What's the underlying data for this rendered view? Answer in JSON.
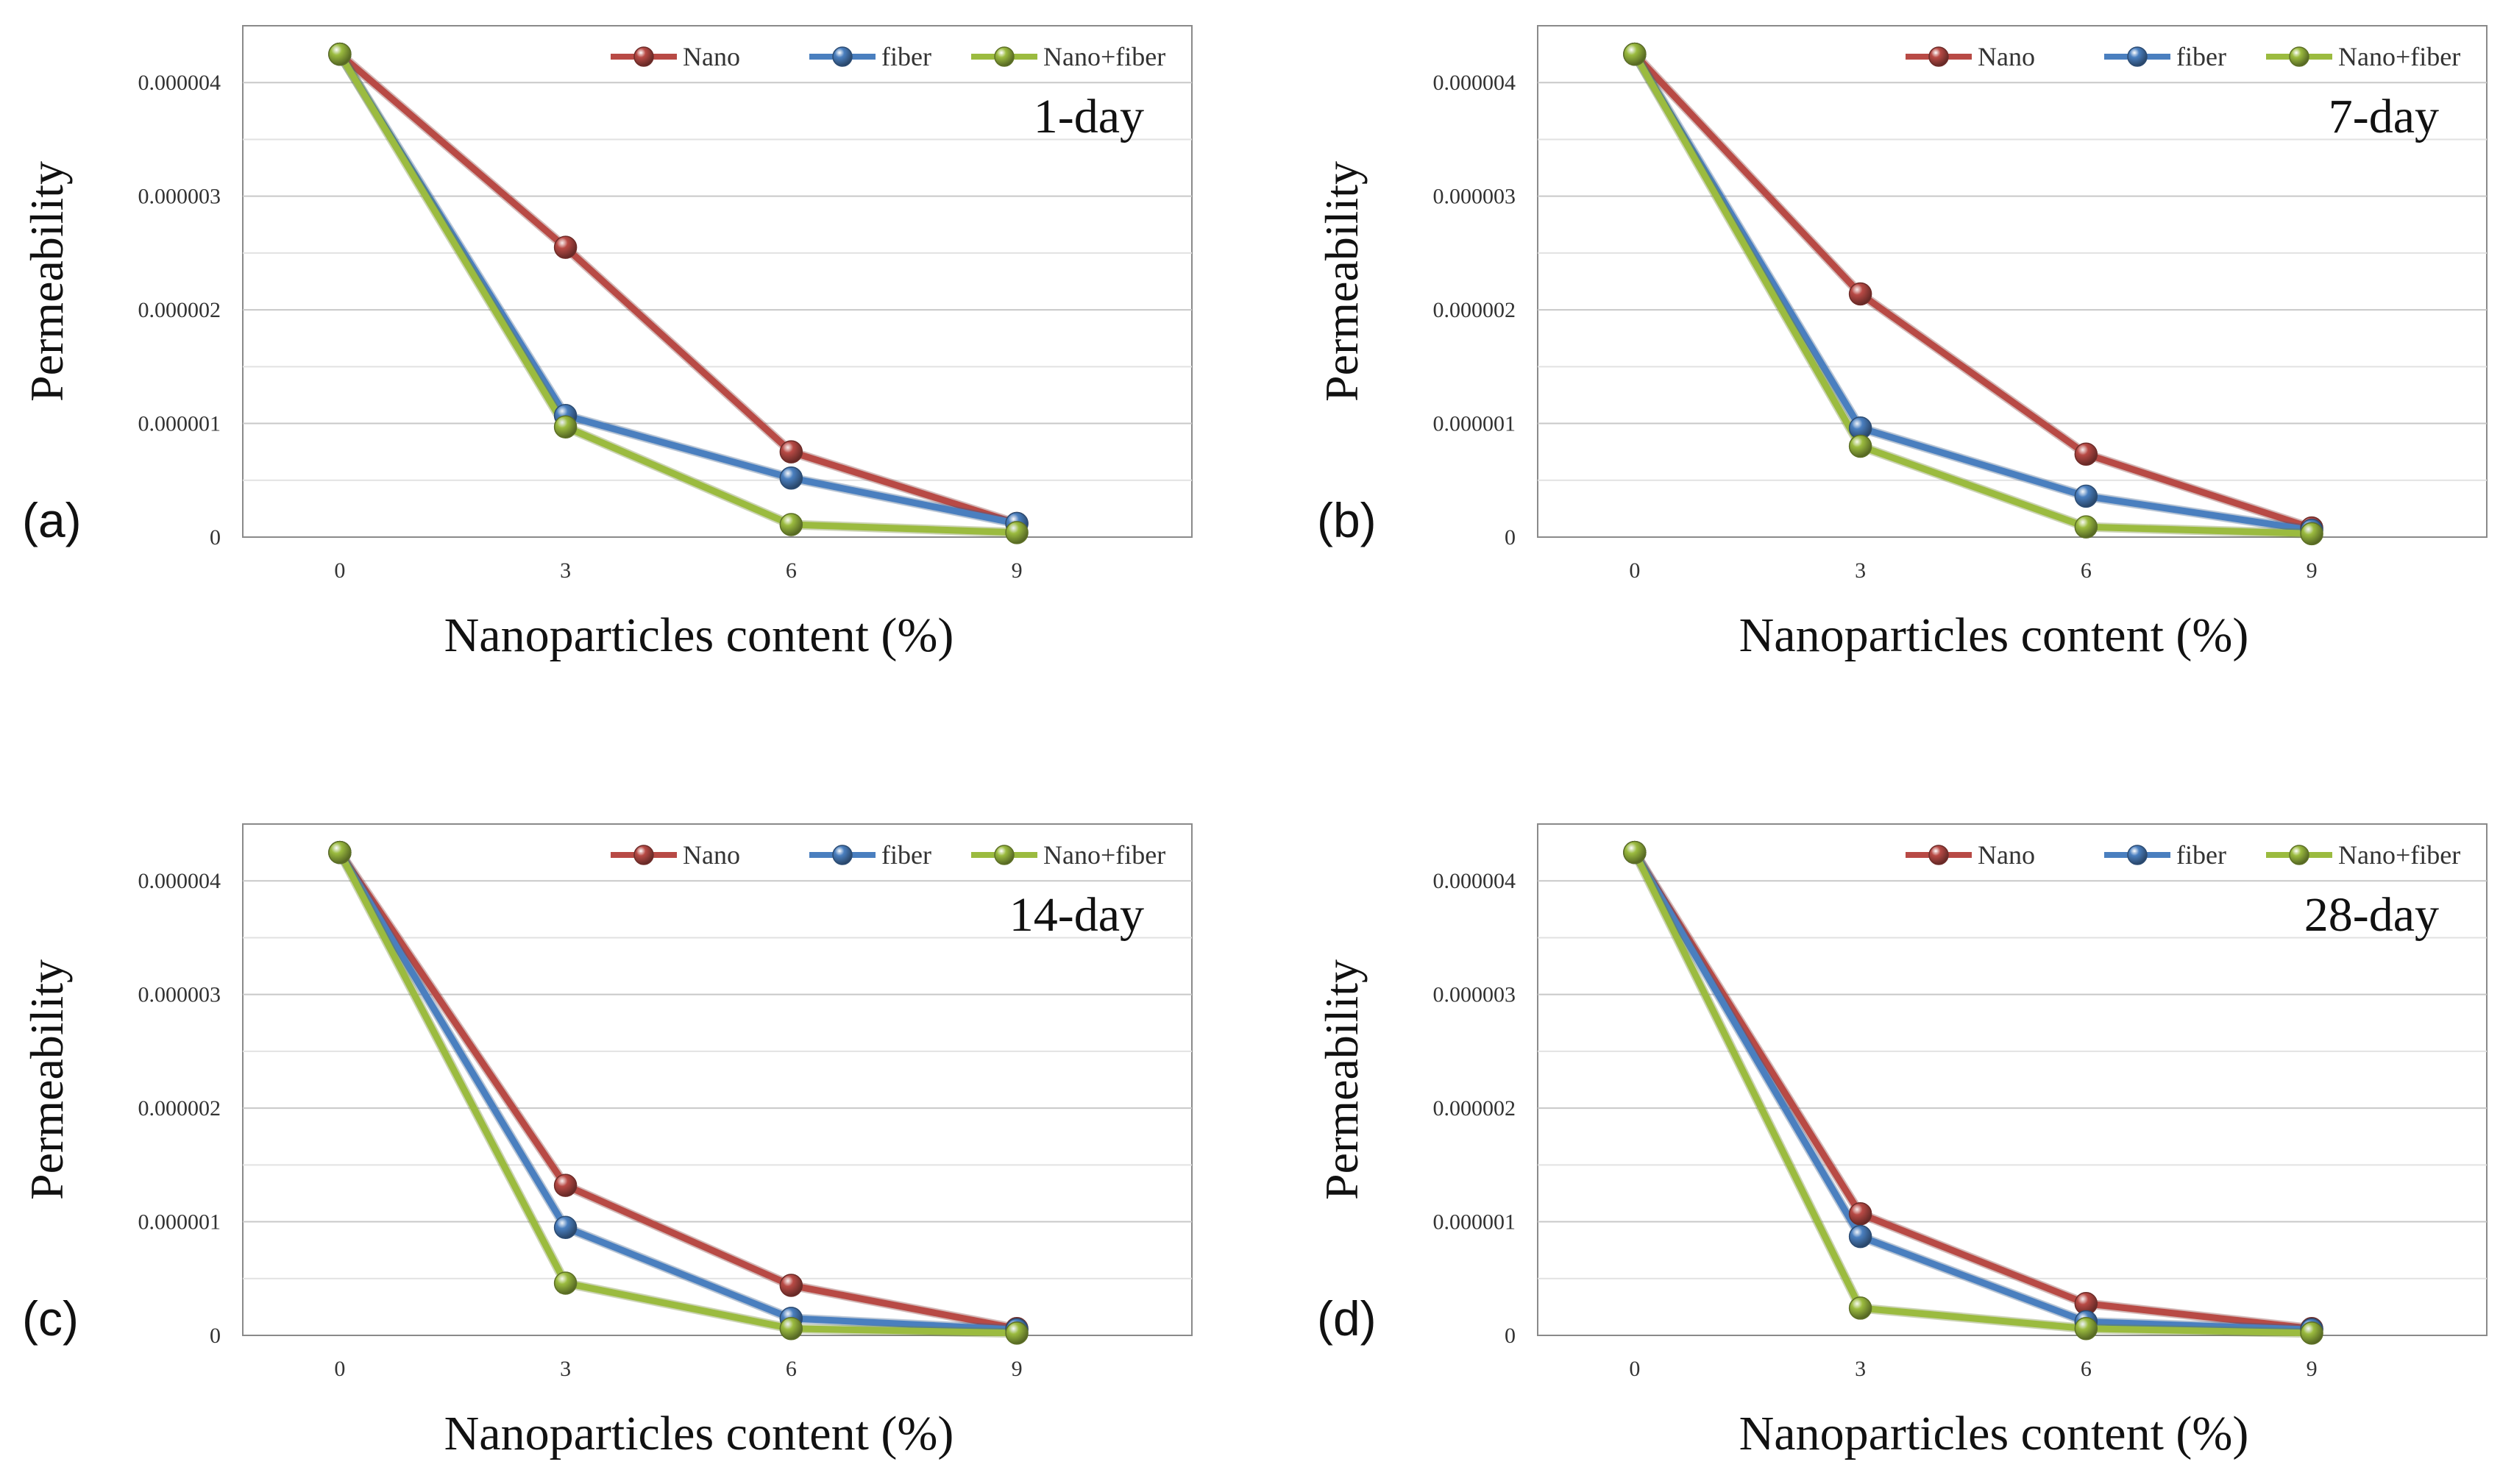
{
  "figure": {
    "series_colors": {
      "Nano": "#b84a45",
      "fiber": "#4a7fbf",
      "Nano+fiber": "#9bbb3f"
    },
    "yticks_labels": [
      "0",
      "0.000001",
      "0.000002",
      "0.000003",
      "0.000004"
    ],
    "xticks_labels": [
      "0",
      "3",
      "6",
      "9"
    ]
  },
  "chart_data": [
    {
      "type": "line",
      "panel_letter": "(a)",
      "day_label": "1-day",
      "xlabel": "Nanoparticles content (%)",
      "ylabel": "Permeability",
      "x": [
        0,
        3,
        6,
        9
      ],
      "ylim": [
        0,
        4.5e-06
      ],
      "legend": [
        "Nano",
        "fiber",
        "Nano+fiber"
      ],
      "legend_position": "top-right",
      "grid": true,
      "series": [
        {
          "name": "Nano",
          "values": [
            4.25e-06,
            2.55e-06,
            7.5e-07,
            1.2e-07
          ]
        },
        {
          "name": "fiber",
          "values": [
            4.25e-06,
            1.07e-06,
            5.2e-07,
            1.2e-07
          ]
        },
        {
          "name": "Nano+fiber",
          "values": [
            4.25e-06,
            9.7e-07,
            1.1e-07,
            4e-08
          ]
        }
      ]
    },
    {
      "type": "line",
      "panel_letter": "(b)",
      "day_label": "7-day",
      "xlabel": "Nanoparticles content (%)",
      "ylabel": "Permeability",
      "x": [
        0,
        3,
        6,
        9
      ],
      "ylim": [
        0,
        4.5e-06
      ],
      "legend": [
        "Nano",
        "fiber",
        "Nano+fiber"
      ],
      "legend_position": "top-right",
      "grid": true,
      "series": [
        {
          "name": "Nano",
          "values": [
            4.25e-06,
            2.14e-06,
            7.3e-07,
            8e-08
          ]
        },
        {
          "name": "fiber",
          "values": [
            4.25e-06,
            9.6e-07,
            3.6e-07,
            6e-08
          ]
        },
        {
          "name": "Nano+fiber",
          "values": [
            4.25e-06,
            8e-07,
            9e-08,
            3e-08
          ]
        }
      ]
    },
    {
      "type": "line",
      "panel_letter": "(c)",
      "day_label": "14-day",
      "xlabel": "Nanoparticles content (%)",
      "ylabel": "Permeability",
      "x": [
        0,
        3,
        6,
        9
      ],
      "ylim": [
        0,
        4.5e-06
      ],
      "legend": [
        "Nano",
        "fiber",
        "Nano+fiber"
      ],
      "legend_position": "top-right",
      "grid": true,
      "series": [
        {
          "name": "Nano",
          "values": [
            4.25e-06,
            1.32e-06,
            4.4e-07,
            6e-08
          ]
        },
        {
          "name": "fiber",
          "values": [
            4.25e-06,
            9.5e-07,
            1.5e-07,
            5e-08
          ]
        },
        {
          "name": "Nano+fiber",
          "values": [
            4.25e-06,
            4.6e-07,
            6e-08,
            2e-08
          ]
        }
      ]
    },
    {
      "type": "line",
      "panel_letter": "(d)",
      "day_label": "28-day",
      "xlabel": "Nanoparticles content (%)",
      "ylabel": "Permeability",
      "x": [
        0,
        3,
        6,
        9
      ],
      "ylim": [
        0,
        4.5e-06
      ],
      "legend": [
        "Nano",
        "fiber",
        "Nano+fiber"
      ],
      "legend_position": "top-right",
      "grid": true,
      "series": [
        {
          "name": "Nano",
          "values": [
            4.25e-06,
            1.07e-06,
            2.8e-07,
            6e-08
          ]
        },
        {
          "name": "fiber",
          "values": [
            4.25e-06,
            8.7e-07,
            1.2e-07,
            5e-08
          ]
        },
        {
          "name": "Nano+fiber",
          "values": [
            4.25e-06,
            2.4e-07,
            6e-08,
            2e-08
          ]
        }
      ]
    }
  ]
}
